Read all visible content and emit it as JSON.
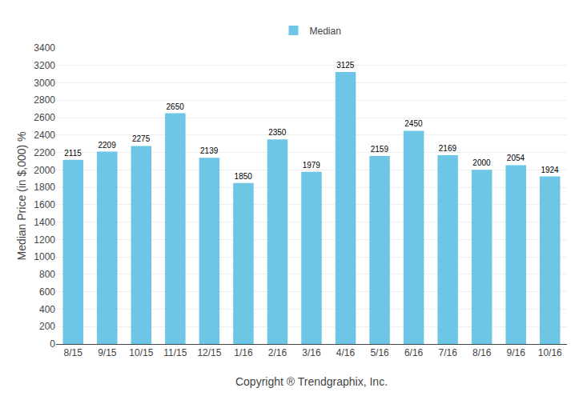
{
  "chart_data": {
    "type": "bar",
    "categories": [
      "8/15",
      "9/15",
      "10/15",
      "11/15",
      "12/15",
      "1/16",
      "2/16",
      "3/16",
      "4/16",
      "5/16",
      "6/16",
      "7/16",
      "8/16",
      "9/16",
      "10/16"
    ],
    "series": [
      {
        "name": "Median",
        "color": "#6EC6E6",
        "values": [
          2115,
          2209,
          2275,
          2650,
          2139,
          1850,
          2350,
          1979,
          3125,
          2159,
          2450,
          2169,
          2000,
          2054,
          1924
        ]
      }
    ],
    "xlabel": "Copyright ® Trendgraphix, Inc.",
    "ylabel": "Median Price (in $,000) %",
    "ylim": [
      0,
      3400
    ],
    "yticks": [
      0,
      200,
      400,
      600,
      800,
      1000,
      1200,
      1400,
      1600,
      1800,
      2000,
      2200,
      2400,
      2600,
      2800,
      3000,
      3200,
      3400
    ],
    "grid": true,
    "legend": "top",
    "data_labels": true
  }
}
